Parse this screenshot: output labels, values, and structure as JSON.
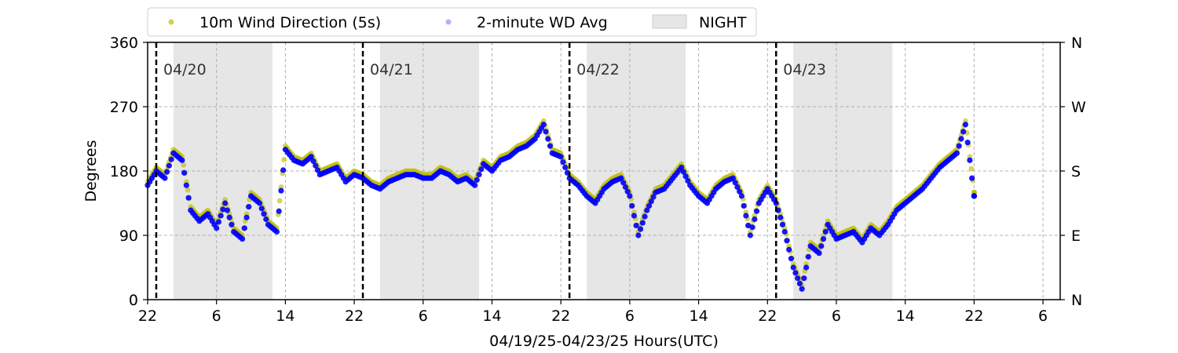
{
  "chart_data": {
    "type": "scatter",
    "xlabel": "04/19/25-04/23/25  Hours(UTC)",
    "ylabel": "Degrees",
    "xlim": [
      22,
      128
    ],
    "ylim": [
      0,
      360
    ],
    "x_ticks": [
      {
        "x": 22,
        "label": "22"
      },
      {
        "x": 30,
        "label": "6"
      },
      {
        "x": 38,
        "label": "14"
      },
      {
        "x": 46,
        "label": "22"
      },
      {
        "x": 54,
        "label": "6"
      },
      {
        "x": 62,
        "label": "14"
      },
      {
        "x": 70,
        "label": "22"
      },
      {
        "x": 78,
        "label": "6"
      },
      {
        "x": 86,
        "label": "14"
      },
      {
        "x": 94,
        "label": "22"
      },
      {
        "x": 102,
        "label": "6"
      },
      {
        "x": 110,
        "label": "14"
      },
      {
        "x": 118,
        "label": "22"
      },
      {
        "x": 126,
        "label": "6"
      }
    ],
    "y_ticks": [
      0,
      90,
      180,
      270,
      360
    ],
    "y_right_ticks": [
      {
        "y": 0,
        "label": "N"
      },
      {
        "y": 90,
        "label": "E"
      },
      {
        "y": 180,
        "label": "S"
      },
      {
        "y": 270,
        "label": "W"
      },
      {
        "y": 360,
        "label": "N"
      }
    ],
    "grid": true,
    "legend_position": "top",
    "legend": [
      {
        "label": "10m Wind Direction (5s)",
        "color": "#bfbf00",
        "kind": "marker"
      },
      {
        "label": "2-minute WD Avg",
        "color": "#0000ff",
        "kind": "marker-faded"
      },
      {
        "label": "NIGHT",
        "color": "#e6e6e6",
        "kind": "patch"
      }
    ],
    "night_periods": [
      [
        25,
        36.5
      ],
      [
        49,
        60.5
      ],
      [
        73,
        84.5
      ],
      [
        97,
        108.5
      ]
    ],
    "day_boundaries": [
      {
        "x": 23,
        "label": "04/20"
      },
      {
        "x": 47,
        "label": "04/21"
      },
      {
        "x": 71,
        "label": "04/22"
      },
      {
        "x": 95,
        "label": "04/23"
      }
    ],
    "series": [
      {
        "name": "10m Wind Direction (5s)",
        "color": "#bfbf00",
        "x": [
          22,
          23,
          24,
          25,
          26,
          27,
          28,
          29,
          30,
          31,
          32,
          33,
          34,
          35,
          36,
          37,
          38,
          39,
          40,
          41,
          42,
          43,
          44,
          45,
          46,
          47,
          48,
          49,
          50,
          51,
          52,
          53,
          54,
          55,
          56,
          57,
          58,
          59,
          60,
          61,
          62,
          63,
          64,
          65,
          66,
          67,
          68,
          69,
          70,
          71,
          72,
          73,
          74,
          75,
          76,
          77,
          78,
          79,
          80,
          81,
          82,
          83,
          84,
          85,
          86,
          87,
          88,
          89,
          90,
          91,
          92,
          93,
          94,
          95,
          96,
          97,
          98,
          99,
          100,
          101,
          102,
          103,
          104,
          105,
          106,
          107,
          108,
          109,
          110,
          111,
          112,
          113,
          114,
          115,
          116,
          117,
          118
        ],
        "y": [
          165,
          185,
          175,
          210,
          200,
          130,
          115,
          125,
          105,
          140,
          100,
          90,
          150,
          140,
          110,
          100,
          215,
          200,
          195,
          205,
          180,
          185,
          190,
          170,
          180,
          175,
          165,
          160,
          170,
          175,
          180,
          180,
          175,
          175,
          185,
          180,
          170,
          175,
          165,
          195,
          185,
          200,
          205,
          215,
          220,
          230,
          250,
          210,
          205,
          175,
          165,
          150,
          140,
          160,
          170,
          175,
          150,
          95,
          130,
          155,
          160,
          175,
          190,
          165,
          150,
          140,
          160,
          170,
          175,
          150,
          95,
          140,
          160,
          140,
          100,
          50,
          20,
          80,
          70,
          110,
          90,
          95,
          100,
          85,
          105,
          95,
          110,
          130,
          140,
          150,
          160,
          175,
          190,
          200,
          210,
          250,
          150
        ]
      },
      {
        "name": "2-minute WD Avg",
        "color": "#0000ff",
        "x": [
          22,
          23,
          24,
          25,
          26,
          27,
          28,
          29,
          30,
          31,
          32,
          33,
          34,
          35,
          36,
          37,
          38,
          39,
          40,
          41,
          42,
          43,
          44,
          45,
          46,
          47,
          48,
          49,
          50,
          51,
          52,
          53,
          54,
          55,
          56,
          57,
          58,
          59,
          60,
          61,
          62,
          63,
          64,
          65,
          66,
          67,
          68,
          69,
          70,
          71,
          72,
          73,
          74,
          75,
          76,
          77,
          78,
          79,
          80,
          81,
          82,
          83,
          84,
          85,
          86,
          87,
          88,
          89,
          90,
          91,
          92,
          93,
          94,
          95,
          96,
          97,
          98,
          99,
          100,
          101,
          102,
          103,
          104,
          105,
          106,
          107,
          108,
          109,
          110,
          111,
          112,
          113,
          114,
          115,
          116,
          117,
          118
        ],
        "y": [
          160,
          180,
          170,
          205,
          195,
          125,
          110,
          120,
          100,
          135,
          95,
          85,
          145,
          135,
          105,
          95,
          210,
          195,
          190,
          200,
          175,
          180,
          185,
          165,
          175,
          170,
          160,
          155,
          165,
          170,
          175,
          175,
          170,
          170,
          180,
          175,
          165,
          170,
          160,
          190,
          180,
          195,
          200,
          210,
          215,
          225,
          245,
          205,
          200,
          170,
          160,
          145,
          135,
          155,
          165,
          170,
          145,
          90,
          125,
          150,
          155,
          170,
          185,
          160,
          145,
          135,
          155,
          165,
          170,
          145,
          90,
          135,
          155,
          135,
          95,
          45,
          15,
          75,
          65,
          105,
          85,
          90,
          95,
          80,
          100,
          90,
          105,
          125,
          135,
          145,
          155,
          170,
          185,
          195,
          205,
          245,
          145
        ]
      }
    ]
  }
}
